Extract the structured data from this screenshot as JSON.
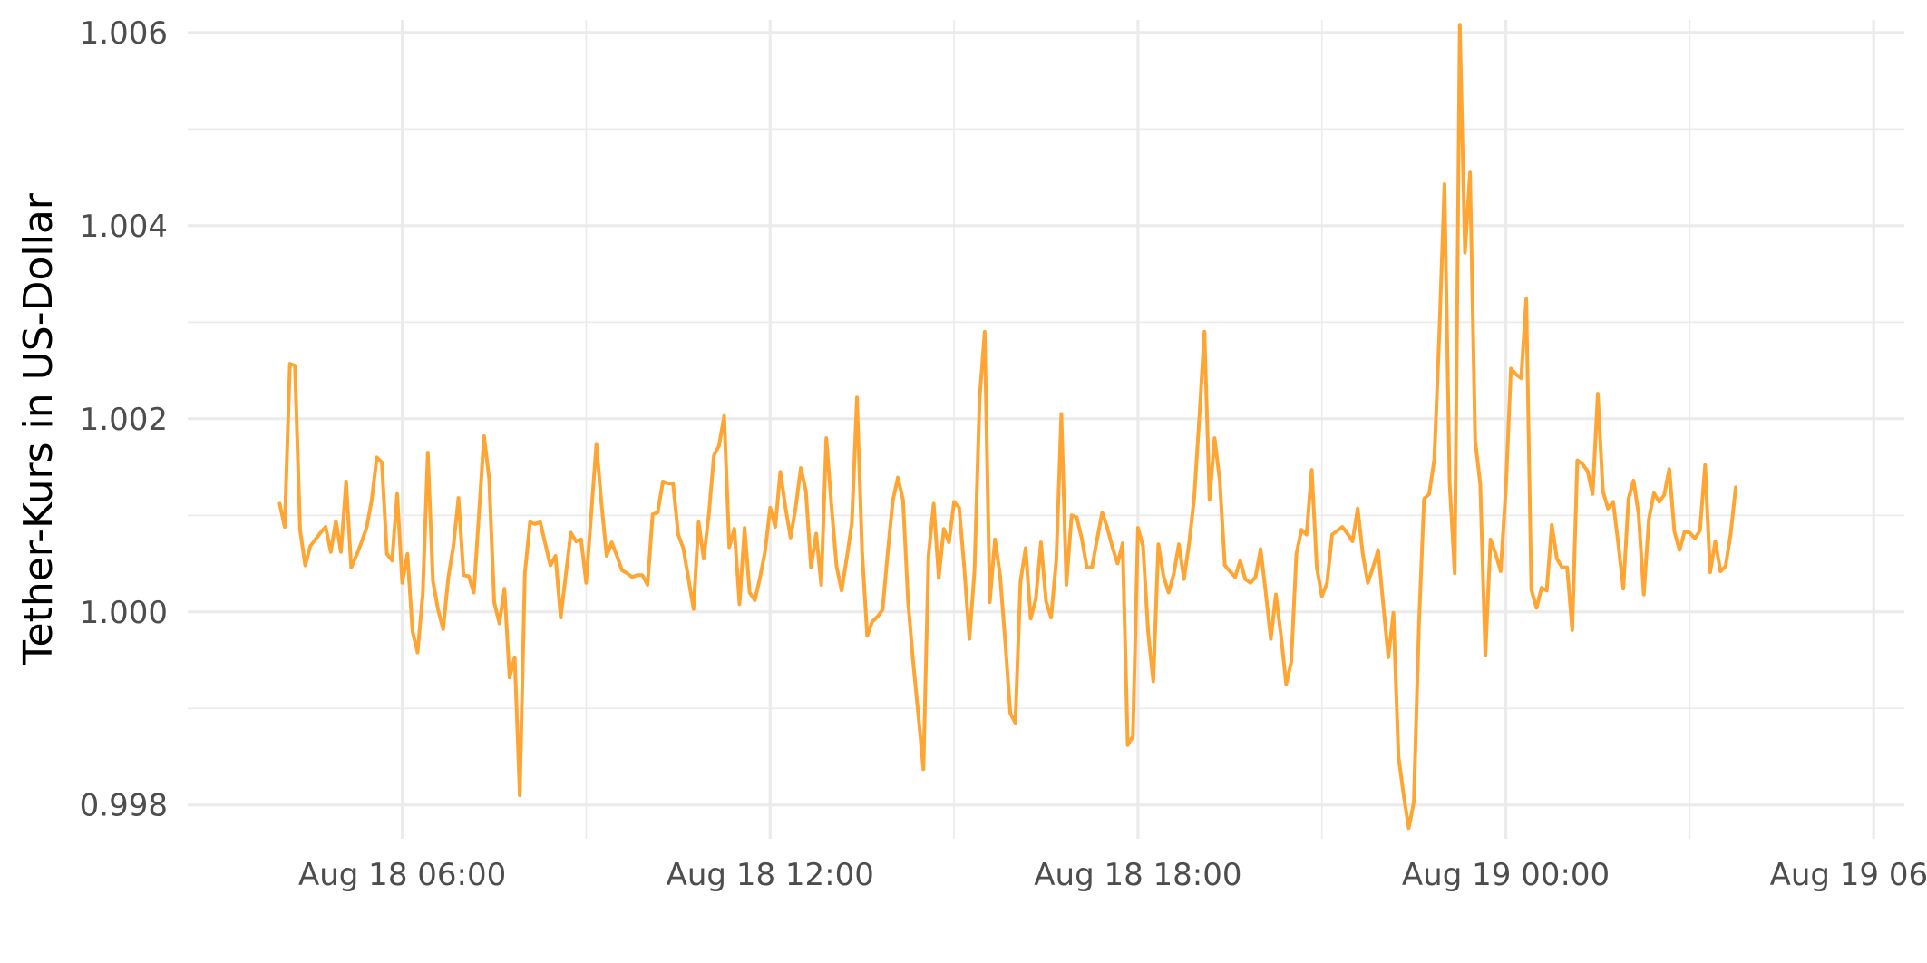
{
  "chart_data": {
    "type": "line",
    "title": "",
    "xlabel": "",
    "ylabel": "Tether-Kurs in US-Dollar",
    "grid": true,
    "legend": "none",
    "series_color": "#ffa533",
    "grid_color": "#ebebeb",
    "xlim": [
      "2023-08-18T02:30",
      "2023-08-19T06:30"
    ],
    "ylim": [
      0.99765,
      1.00613
    ],
    "x_ticks": [
      {
        "t": "2023-08-18T06:00",
        "label": "Aug 18 06:00"
      },
      {
        "t": "2023-08-18T12:00",
        "label": "Aug 18 12:00"
      },
      {
        "t": "2023-08-18T18:00",
        "label": "Aug 18 18:00"
      },
      {
        "t": "2023-08-19T00:00",
        "label": "Aug 19 00:00"
      },
      {
        "t": "2023-08-19T06:00",
        "label": "Aug 19 06:00"
      }
    ],
    "x_minor_ticks": [
      "2023-08-18T09:00",
      "2023-08-18T15:00",
      "2023-08-18T21:00",
      "2023-08-19T03:00"
    ],
    "y_ticks": [
      {
        "v": 0.998,
        "label": "0.998"
      },
      {
        "v": 1.0,
        "label": "1.000"
      },
      {
        "v": 1.002,
        "label": "1.002"
      },
      {
        "v": 1.004,
        "label": "1.004"
      },
      {
        "v": 1.006,
        "label": "1.006"
      }
    ],
    "y_minor_ticks": [
      0.999,
      1.001,
      1.003,
      1.005
    ],
    "series": [
      {
        "start": "2023-08-18T04:00",
        "interval_minutes": 5,
        "values": [
          1.00112,
          1.00088,
          1.00257,
          1.00255,
          1.00085,
          1.00048,
          1.00068,
          1.00075,
          1.00082,
          1.00088,
          1.00062,
          1.00094,
          1.00062,
          1.00135,
          1.00046,
          1.00058,
          1.00072,
          1.00087,
          1.00115,
          1.0016,
          1.00155,
          1.0006,
          1.00053,
          1.00122,
          1.0003,
          1.0006,
          0.9998,
          0.99958,
          1.00018,
          1.00165,
          1.00032,
          1.00002,
          0.99982,
          1.00035,
          1.00068,
          1.00118,
          1.00038,
          1.00037,
          1.0002,
          1.001,
          1.00182,
          1.00138,
          1.0001,
          0.99988,
          1.00024,
          0.99932,
          0.99953,
          0.9981,
          1.0004,
          1.00093,
          1.00091,
          1.00093,
          1.0007,
          1.00048,
          1.00058,
          0.99994,
          1.00038,
          1.00082,
          1.00073,
          1.00075,
          1.0003,
          1.00103,
          1.00174,
          1.00112,
          1.00058,
          1.00072,
          1.00058,
          1.00043,
          1.0004,
          1.00036,
          1.00038,
          1.00038,
          1.00028,
          1.00101,
          1.00103,
          1.00135,
          1.00133,
          1.00133,
          1.0008,
          1.00066,
          1.00035,
          1.00003,
          1.00093,
          1.00055,
          1.00101,
          1.00162,
          1.00172,
          1.00203,
          1.00067,
          1.00086,
          1.00008,
          1.00087,
          1.0002,
          1.00012,
          1.00035,
          1.00062,
          1.00108,
          1.00088,
          1.00145,
          1.00108,
          1.00077,
          1.00108,
          1.00149,
          1.00125,
          1.00046,
          1.00081,
          1.00028,
          1.0018,
          1.0011,
          1.00047,
          1.00022,
          1.00056,
          1.00092,
          1.00222,
          1.00062,
          0.99975,
          0.9999,
          0.99995,
          1.00002,
          1.0006,
          1.00115,
          1.00139,
          1.00116,
          1.0001,
          0.99948,
          0.99893,
          0.99837,
          1.00058,
          1.00112,
          1.00035,
          1.00086,
          1.00072,
          1.00114,
          1.00108,
          1.00045,
          0.99972,
          1.00042,
          1.00222,
          1.0029,
          1.0001,
          1.00075,
          1.00038,
          0.99971,
          0.99895,
          0.99885,
          1.00031,
          1.00066,
          0.99993,
          1.00013,
          1.00072,
          1.00011,
          0.99994,
          1.00053,
          1.00205,
          1.00028,
          1.001,
          1.00098,
          1.00076,
          1.00046,
          1.00046,
          1.00075,
          1.00103,
          1.00087,
          1.00067,
          1.0005,
          1.00071,
          0.99862,
          0.99871,
          1.00087,
          1.00068,
          0.99978,
          0.99928,
          1.0007,
          1.00037,
          1.0002,
          1.00039,
          1.0007,
          1.00034,
          1.00071,
          1.00118,
          1.002,
          1.0029,
          1.00116,
          1.0018,
          1.00136,
          1.00048,
          1.00042,
          1.00036,
          1.00053,
          1.00034,
          1.0003,
          1.00036,
          1.00065,
          1.0002,
          0.99972,
          1.00018,
          0.99975,
          0.99925,
          0.99948,
          1.0006,
          1.00085,
          1.0008,
          1.00147,
          1.00046,
          1.00016,
          1.0003,
          1.0008,
          1.00084,
          1.00088,
          1.00081,
          1.00073,
          1.00107,
          1.0006,
          1.0003,
          1.00046,
          1.00064,
          1.00008,
          0.99953,
          0.99999,
          0.9985,
          0.9981,
          0.99776,
          0.99803,
          0.99988,
          1.00117,
          1.00122,
          1.00158,
          1.0029,
          1.00443,
          1.00133,
          1.0004,
          1.00608,
          1.00372,
          1.00455,
          1.00177,
          1.00132,
          0.99955,
          1.00075,
          1.0006,
          1.00042,
          1.00128,
          1.00252,
          1.00246,
          1.00242,
          1.00324,
          1.00023,
          1.00004,
          1.00025,
          1.00022,
          1.0009,
          1.00055,
          1.00046,
          1.00046,
          0.99981,
          1.00157,
          1.00153,
          1.00146,
          1.00122,
          1.00226,
          1.00125,
          1.00107,
          1.00114,
          1.00071,
          1.00024,
          1.00117,
          1.00136,
          1.00101,
          1.00018,
          1.00096,
          1.00123,
          1.00114,
          1.00121,
          1.00148,
          1.00083,
          1.00064,
          1.00083,
          1.00082,
          1.00076,
          1.00084,
          1.00152,
          1.00041,
          1.00073,
          1.00042,
          1.00047,
          1.0008,
          1.00129
        ]
      }
    ]
  }
}
